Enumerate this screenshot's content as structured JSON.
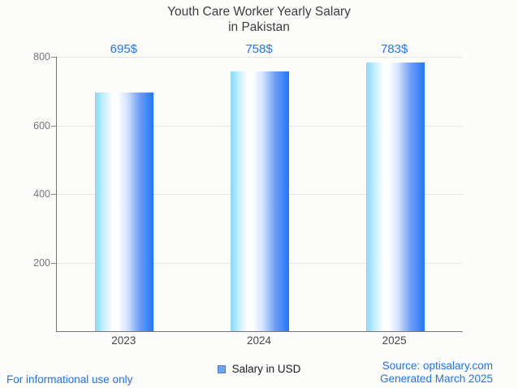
{
  "page": {
    "background": "#fcfcfa"
  },
  "chart_data": {
    "type": "bar",
    "title_line1": "Youth Care Worker Yearly Salary",
    "title_line2": "in Pakistan",
    "categories": [
      "2023",
      "2024",
      "2025"
    ],
    "values": [
      695,
      758,
      783
    ],
    "value_labels": [
      "695$",
      "758$",
      "783$"
    ],
    "series_name": "Salary in USD",
    "xlabel": "",
    "ylabel": "",
    "ylim": [
      0,
      800
    ],
    "yticks": [
      200,
      400,
      600,
      800
    ],
    "grid": "horizontal",
    "legend_position": "bottom-center",
    "bar_gradient_left": "#85dafa",
    "bar_gradient_mid": "#ffffff",
    "bar_gradient_right": "#2277f7"
  },
  "legend": {
    "label": "Salary in USD",
    "marker_fill": "#6fa3ef",
    "marker_border": "#4c7ecd"
  },
  "footer": {
    "left": "For informational use only",
    "source_line1": "Source: optisalary.com",
    "source_line2": "Generated March 2025"
  },
  "colors": {
    "value_label": "#2176f3",
    "footer_text": "#2273e8",
    "title_text": "#3d3d3d",
    "axis_line": "#757575",
    "grid_line": "#e6e6e4",
    "tick_label": "#757575",
    "category_label": "#474747"
  }
}
